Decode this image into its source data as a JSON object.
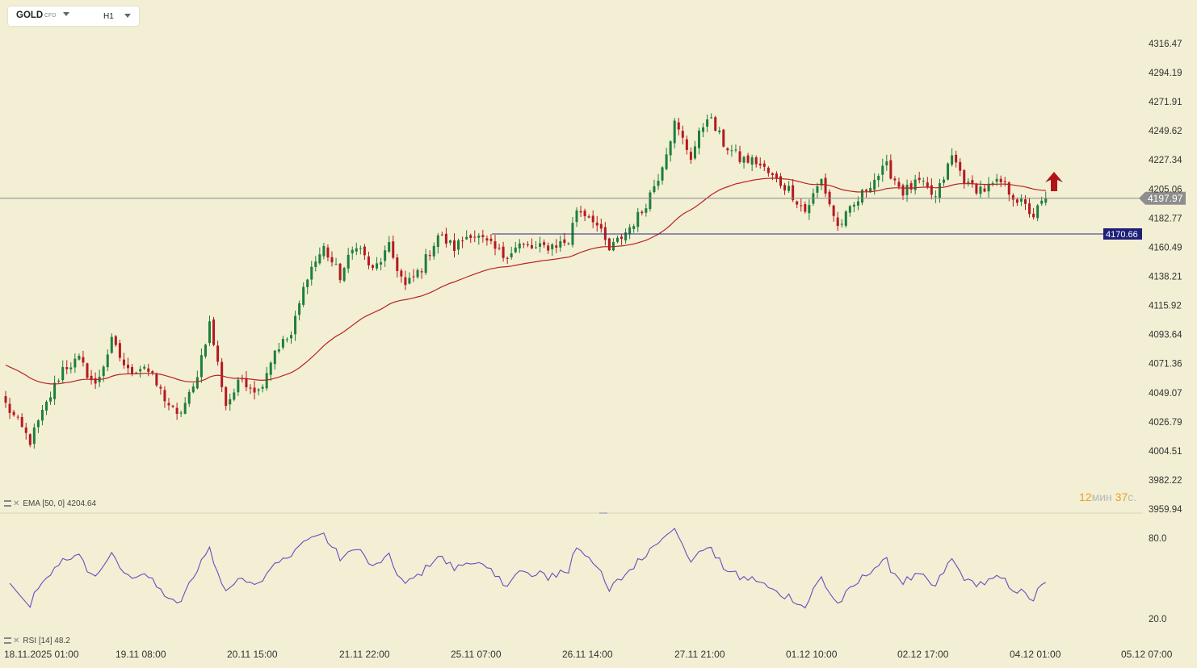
{
  "header": {
    "symbol": "GOLD",
    "badge": "CFD",
    "timeframe": "H1"
  },
  "indicators": {
    "ema_label": "EMA [50, 0] 4204.64",
    "rsi_label": "RSI [14] 48.2"
  },
  "timer": {
    "minutes": "12",
    "min_unit": "мин",
    "seconds": "37",
    "sec_unit": "с."
  },
  "colors": {
    "background": "#f3efd4",
    "bull_candle": "#1e7f3c",
    "bear_candle": "#b5191f",
    "ema_line": "#b82222",
    "rsi_line": "#6a4bc0",
    "price_line": "#8a8a8a",
    "level_line": "#2a2a8a",
    "level_label_bg": "#1f1f7a",
    "price_label_bg": "#8e8e8e",
    "arrow": "#b0141a"
  },
  "chart_data": {
    "type": "candlestick",
    "symbol": "GOLD",
    "interval": "H1",
    "y_axis": {
      "ticks": [
        "4316.47",
        "4294.19",
        "4271.91",
        "4249.62",
        "4227.34",
        "4205.06",
        "4182.77",
        "4160.49",
        "4138.21",
        "4115.92",
        "4093.64",
        "4071.36",
        "4049.07",
        "4026.79",
        "4004.51",
        "3982.22",
        "3959.94"
      ],
      "ylim": [
        3959.94,
        4316.47
      ]
    },
    "x_axis": {
      "ticks": [
        "18.11.2025  01:00",
        "19.11  08:00",
        "20.11  15:00",
        "21.11  22:00",
        "25.11  07:00",
        "26.11  14:00",
        "27.11  21:00",
        "01.12  10:00",
        "02.12  17:00",
        "04.12  01:00",
        "05.12  07:00"
      ]
    },
    "current_price": "4197.97",
    "horizontal_level": "4170.66",
    "ema": {
      "period": 50,
      "value": 4204.64
    },
    "signal": "up-arrow",
    "path_anchors": [
      [
        0,
        4040
      ],
      [
        6,
        4012
      ],
      [
        10,
        4040
      ],
      [
        14,
        4068
      ],
      [
        18,
        4074
      ],
      [
        22,
        4054
      ],
      [
        26,
        4088
      ],
      [
        30,
        4065
      ],
      [
        34,
        4070
      ],
      [
        38,
        4050
      ],
      [
        42,
        4030
      ],
      [
        46,
        4052
      ],
      [
        50,
        4102
      ],
      [
        54,
        4040
      ],
      [
        58,
        4060
      ],
      [
        62,
        4050
      ],
      [
        66,
        4082
      ],
      [
        70,
        4093
      ],
      [
        74,
        4140
      ],
      [
        78,
        4160
      ],
      [
        82,
        4138
      ],
      [
        86,
        4164
      ],
      [
        90,
        4142
      ],
      [
        94,
        4160
      ],
      [
        98,
        4130
      ],
      [
        102,
        4145
      ],
      [
        106,
        4170
      ],
      [
        110,
        4160
      ],
      [
        114,
        4172
      ],
      [
        118,
        4163
      ],
      [
        122,
        4154
      ],
      [
        126,
        4162
      ],
      [
        130,
        4159
      ],
      [
        134,
        4162
      ],
      [
        138,
        4165
      ],
      [
        140,
        4190
      ],
      [
        144,
        4183
      ],
      [
        148,
        4158
      ],
      [
        152,
        4172
      ],
      [
        156,
        4188
      ],
      [
        160,
        4215
      ],
      [
        164,
        4255
      ],
      [
        168,
        4230
      ],
      [
        172,
        4262
      ],
      [
        176,
        4240
      ],
      [
        180,
        4228
      ],
      [
        184,
        4226
      ],
      [
        188,
        4214
      ],
      [
        192,
        4205
      ],
      [
        196,
        4188
      ],
      [
        200,
        4212
      ],
      [
        204,
        4176
      ],
      [
        208,
        4192
      ],
      [
        212,
        4210
      ],
      [
        216,
        4222
      ],
      [
        220,
        4203
      ],
      [
        224,
        4210
      ],
      [
        228,
        4198
      ],
      [
        232,
        4230
      ],
      [
        236,
        4207
      ],
      [
        240,
        4205
      ],
      [
        244,
        4210
      ],
      [
        248,
        4197
      ],
      [
        252,
        4185
      ],
      [
        255,
        4197.97
      ]
    ],
    "rsi": {
      "period": 14,
      "value": 48.2,
      "ticks": [
        "80.0",
        "20.0"
      ],
      "ylim": [
        0,
        100
      ]
    }
  }
}
